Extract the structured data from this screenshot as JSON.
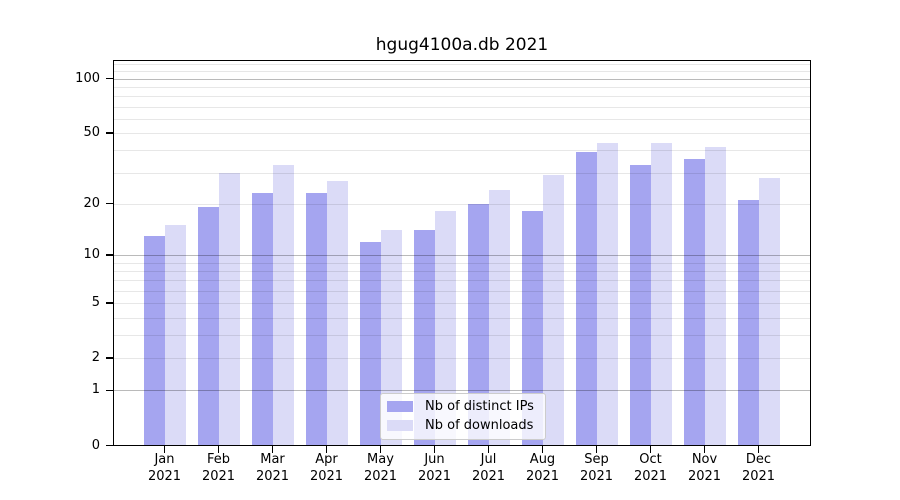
{
  "chart_data": {
    "type": "bar",
    "title": "hgug4100a.db 2021",
    "categories": [
      "Jan",
      "Feb",
      "Mar",
      "Apr",
      "May",
      "Jun",
      "Jul",
      "Aug",
      "Sep",
      "Oct",
      "Nov",
      "Dec"
    ],
    "category_year": "2021",
    "series": [
      {
        "name": "Nb of distinct IPs",
        "color": "#a5a5f0",
        "values": [
          13,
          19,
          23,
          23,
          12,
          14,
          20,
          18,
          39,
          33,
          36,
          21
        ]
      },
      {
        "name": "Nb of downloads",
        "color": "#dbdbf7",
        "values": [
          15,
          30,
          33,
          27,
          14,
          18,
          24,
          29,
          44,
          44,
          42,
          28
        ]
      }
    ],
    "y_axis": {
      "scale": "log10(value+1)",
      "tick_labels": [
        100,
        50,
        20,
        10,
        5,
        2,
        1,
        0
      ],
      "major_gridlines": [
        1,
        10,
        100
      ],
      "minor_gridlines": [
        2,
        3,
        4,
        5,
        6,
        7,
        8,
        9,
        20,
        30,
        40,
        50,
        60,
        70,
        80,
        90,
        110,
        120
      ],
      "range": [
        0,
        127
      ]
    },
    "x_axis": {
      "tick_label_lines": 2
    },
    "legend": {
      "position": "lower center",
      "entries": [
        "Nb of distinct IPs",
        "Nb of downloads"
      ]
    },
    "grid": true
  }
}
